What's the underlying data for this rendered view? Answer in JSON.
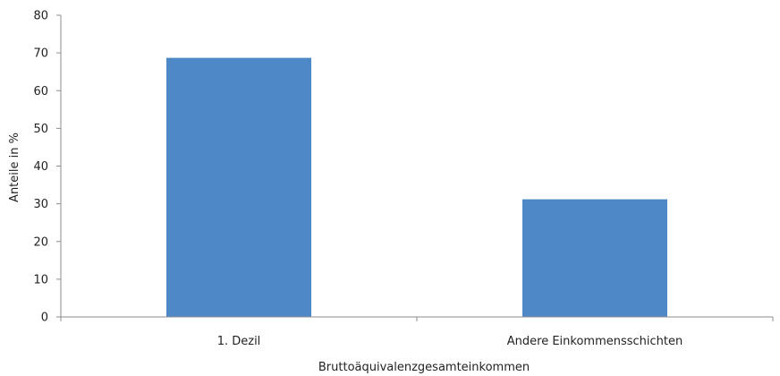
{
  "chart_data": {
    "type": "bar",
    "categories": [
      "1. Dezil",
      "Andere Einkommensschichten"
    ],
    "values": [
      68.7,
      31.2
    ],
    "title": "",
    "xlabel": "Bruttoäquivalenzgesamteinkommen",
    "ylabel": "Anteile in %",
    "ylim": [
      0,
      80
    ],
    "yticks": [
      0,
      10,
      20,
      30,
      40,
      50,
      60,
      70,
      80
    ],
    "grid": false,
    "legend": "none",
    "colors": {
      "bar": "#4f88c7",
      "axis": "#8c8c8c"
    }
  }
}
